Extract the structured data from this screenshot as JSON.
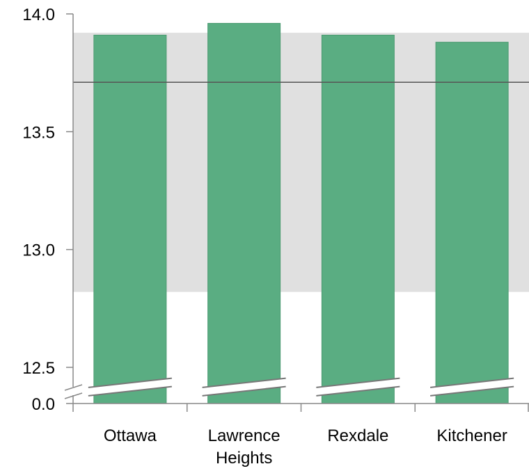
{
  "chart_data": {
    "type": "bar",
    "categories": [
      "Ottawa",
      "Lawrence Heights",
      "Rexdale",
      "Kitchener"
    ],
    "category_label_lines": [
      [
        "Ottawa"
      ],
      [
        "Lawrence",
        "Heights"
      ],
      [
        "Rexdale"
      ],
      [
        "Kitchener"
      ]
    ],
    "values": [
      13.91,
      13.96,
      13.91,
      13.88
    ],
    "y_ticks": [
      {
        "value": 14.0,
        "label": "14.0"
      },
      {
        "value": 13.5,
        "label": "13.5"
      },
      {
        "value": 13.0,
        "label": "13.0"
      },
      {
        "value": 12.5,
        "label": "12.5"
      },
      {
        "value": 0.0,
        "label": "0.0"
      }
    ],
    "ylim": [
      12.5,
      14.0
    ],
    "axis_break": {
      "from": 0.0,
      "to": 12.5
    },
    "reference_line": 13.71,
    "shaded_band": [
      12.82,
      13.92
    ],
    "title": "",
    "xlabel": "",
    "ylabel": "",
    "grid": false,
    "legend": "none",
    "colors": {
      "bar": "#5aad82",
      "bar_stroke": "#4a9a70",
      "band": "#e0e0e0",
      "reference_line": "#555555",
      "axis": "#888888"
    }
  }
}
